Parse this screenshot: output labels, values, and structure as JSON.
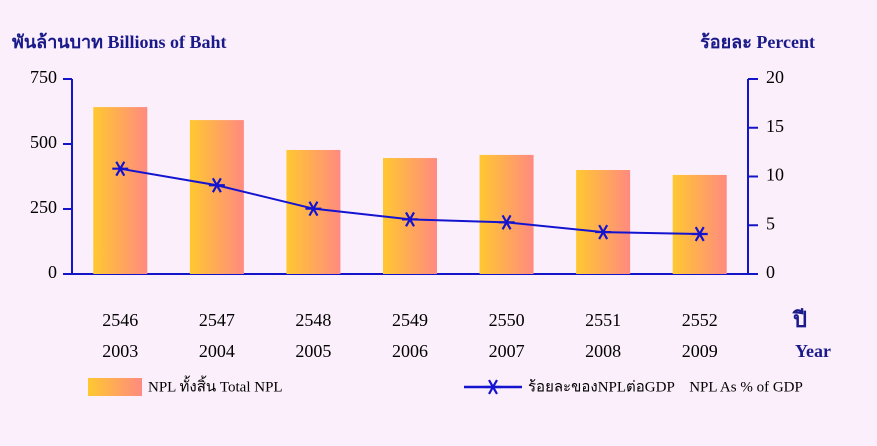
{
  "chart_data": {
    "type": "bar-line",
    "y_axis_title": "พันล้านบาท  Billions of Baht",
    "y2_axis_title": "ร้อยละ  Percent",
    "x_axis_title": [
      "ปี",
      "Year"
    ],
    "categories": [
      [
        "2546",
        "2003"
      ],
      [
        "2547",
        "2004"
      ],
      [
        "2548",
        "2005"
      ],
      [
        "2549",
        "2006"
      ],
      [
        "2550",
        "2007"
      ],
      [
        "2551",
        "2008"
      ],
      [
        "2552",
        "2009"
      ]
    ],
    "series": [
      {
        "name": "NPL ทั้งสิ้น  Total  NPL",
        "type": "bar",
        "color": "#ff8a80",
        "color2": "#ffc830",
        "values": [
          642,
          592,
          477,
          446,
          458,
          400,
          381
        ]
      },
      {
        "name": "ร้อยละของNPLต่อGDP    NPL As % of GDP",
        "type": "line",
        "axis": "y2",
        "color": "#1414d0",
        "values": [
          10.8,
          9.1,
          6.7,
          5.6,
          5.3,
          4.3,
          4.1
        ]
      }
    ],
    "ylim": [
      0,
      750
    ],
    "yticks": [
      0,
      250,
      500,
      750
    ],
    "y2lim": [
      0,
      20
    ],
    "y2ticks": [
      0,
      5,
      10,
      15,
      20
    ]
  }
}
